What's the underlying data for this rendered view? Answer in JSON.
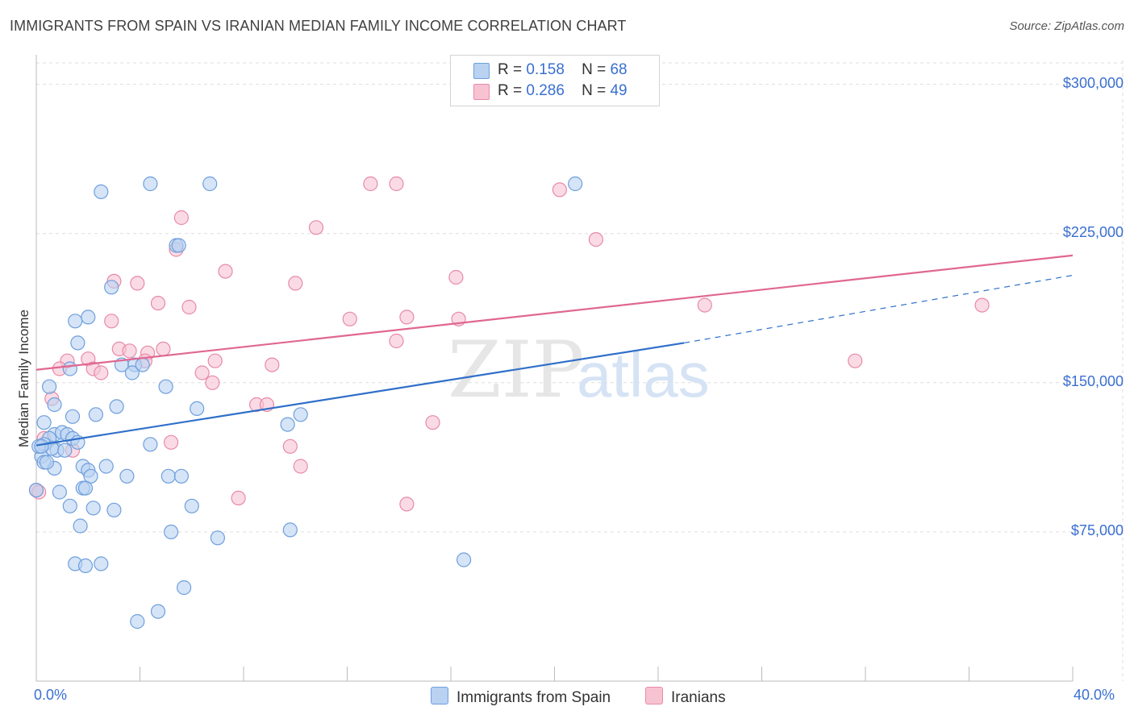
{
  "title": "IMMIGRANTS FROM SPAIN VS IRANIAN MEDIAN FAMILY INCOME CORRELATION CHART",
  "source": "Source: ZipAtlas.com",
  "watermark": {
    "zip": "ZIP",
    "atlas": "atlas"
  },
  "legend_top": [
    {
      "r_label": "R =",
      "r_value": "0.158",
      "n_label": "N =",
      "n_value": "68"
    },
    {
      "r_label": "R =",
      "r_value": "0.286",
      "n_label": "N =",
      "n_value": "49"
    }
  ],
  "legend_bottom": [
    "Immigrants from Spain",
    "Iranians"
  ],
  "colors": {
    "blue_fill": "#b9d2f2",
    "blue_stroke": "#6f9fdc",
    "blue_line": "#2f6fc9",
    "pink_fill": "#f7c3d3",
    "pink_stroke": "#e88aa6",
    "pink_line": "#e06790",
    "axis_text": "#3a6fd0",
    "grid": "#dddddd"
  },
  "chart_data": {
    "type": "scatter",
    "title": "IMMIGRANTS FROM SPAIN VS IRANIAN MEDIAN FAMILY INCOME CORRELATION CHART",
    "xlabel": "",
    "ylabel": "Median Family Income",
    "xlim": [
      0,
      40
    ],
    "ylim": [
      0,
      312000
    ],
    "x_tick_labels": [
      "0.0%",
      "40.0%"
    ],
    "y_ticks": [
      75000,
      150000,
      225000,
      300000
    ],
    "y_tick_labels": [
      "$75,000",
      "$150,000",
      "$225,000",
      "$300,000"
    ],
    "grid": true,
    "legend_position": "top-center",
    "series": [
      {
        "name": "Immigrants from Spain",
        "r": 0.158,
        "n": 68,
        "trend": {
          "x": [
            0,
            25
          ],
          "y": [
            118500,
            170000
          ],
          "dash_extension_to_x": 40,
          "dash_extension_y": 204000
        },
        "points": [
          [
            2.5,
            246000
          ],
          [
            4.4,
            250000
          ],
          [
            6.7,
            250000
          ],
          [
            20.8,
            250000
          ],
          [
            5.4,
            219000
          ],
          [
            5.5,
            219000
          ],
          [
            2.9,
            198000
          ],
          [
            2.0,
            183000
          ],
          [
            1.5,
            181000
          ],
          [
            1.6,
            170000
          ],
          [
            1.3,
            157000
          ],
          [
            3.3,
            159000
          ],
          [
            3.8,
            159000
          ],
          [
            3.7,
            155000
          ],
          [
            4.1,
            159000
          ],
          [
            5.0,
            148000
          ],
          [
            0.5,
            148000
          ],
          [
            0.7,
            139000
          ],
          [
            1.4,
            133000
          ],
          [
            2.3,
            134000
          ],
          [
            3.1,
            138000
          ],
          [
            6.2,
            137000
          ],
          [
            10.2,
            134000
          ],
          [
            9.7,
            129000
          ],
          [
            0.3,
            130000
          ],
          [
            0.7,
            124000
          ],
          [
            1.0,
            125000
          ],
          [
            1.2,
            124000
          ],
          [
            1.4,
            122000
          ],
          [
            1.6,
            120000
          ],
          [
            0.5,
            122000
          ],
          [
            0.3,
            119000
          ],
          [
            0.8,
            116000
          ],
          [
            4.4,
            119000
          ],
          [
            0.2,
            113000
          ],
          [
            0.7,
            107000
          ],
          [
            1.8,
            108000
          ],
          [
            2.7,
            108000
          ],
          [
            2.0,
            106000
          ],
          [
            2.1,
            103000
          ],
          [
            3.5,
            103000
          ],
          [
            5.1,
            103000
          ],
          [
            5.6,
            103000
          ],
          [
            1.8,
            97000
          ],
          [
            1.9,
            97000
          ],
          [
            0.9,
            95000
          ],
          [
            0.0,
            96000
          ],
          [
            1.3,
            88000
          ],
          [
            2.2,
            87000
          ],
          [
            3.0,
            86000
          ],
          [
            6.0,
            88000
          ],
          [
            1.7,
            78000
          ],
          [
            5.2,
            75000
          ],
          [
            7.0,
            72000
          ],
          [
            9.8,
            76000
          ],
          [
            1.5,
            59000
          ],
          [
            1.9,
            58000
          ],
          [
            2.5,
            59000
          ],
          [
            16.5,
            61000
          ],
          [
            5.7,
            47000
          ],
          [
            4.7,
            35000
          ],
          [
            3.9,
            30000
          ],
          [
            0.1,
            118000
          ],
          [
            0.3,
            110000
          ],
          [
            0.6,
            117000
          ],
          [
            1.1,
            116000
          ],
          [
            0.4,
            110000
          ],
          [
            0.2,
            118000
          ]
        ]
      },
      {
        "name": "Iranians",
        "r": 0.286,
        "n": 49,
        "trend": {
          "x": [
            0,
            40
          ],
          "y": [
            156500,
            214000
          ]
        },
        "points": [
          [
            12.9,
            250000
          ],
          [
            13.9,
            250000
          ],
          [
            20.2,
            247000
          ],
          [
            5.6,
            233000
          ],
          [
            10.8,
            228000
          ],
          [
            21.6,
            222000
          ],
          [
            5.4,
            217000
          ],
          [
            7.3,
            206000
          ],
          [
            3.0,
            201000
          ],
          [
            3.9,
            200000
          ],
          [
            10.0,
            200000
          ],
          [
            16.2,
            203000
          ],
          [
            4.7,
            190000
          ],
          [
            5.9,
            188000
          ],
          [
            25.8,
            189000
          ],
          [
            36.5,
            189000
          ],
          [
            2.9,
            181000
          ],
          [
            12.1,
            182000
          ],
          [
            14.3,
            183000
          ],
          [
            16.3,
            182000
          ],
          [
            13.9,
            171000
          ],
          [
            3.2,
            167000
          ],
          [
            3.6,
            166000
          ],
          [
            4.3,
            165000
          ],
          [
            4.9,
            167000
          ],
          [
            2.0,
            162000
          ],
          [
            1.2,
            161000
          ],
          [
            4.2,
            161000
          ],
          [
            6.9,
            161000
          ],
          [
            31.6,
            161000
          ],
          [
            0.9,
            157000
          ],
          [
            2.2,
            157000
          ],
          [
            2.5,
            155000
          ],
          [
            6.4,
            155000
          ],
          [
            9.1,
            159000
          ],
          [
            6.8,
            150000
          ],
          [
            0.6,
            142000
          ],
          [
            8.5,
            139000
          ],
          [
            8.9,
            139000
          ],
          [
            15.3,
            130000
          ],
          [
            0.3,
            122000
          ],
          [
            5.2,
            120000
          ],
          [
            1.4,
            116000
          ],
          [
            9.8,
            118000
          ],
          [
            10.2,
            108000
          ],
          [
            7.8,
            92000
          ],
          [
            14.3,
            89000
          ],
          [
            0.0,
            96000
          ],
          [
            0.1,
            95000
          ]
        ]
      }
    ]
  }
}
